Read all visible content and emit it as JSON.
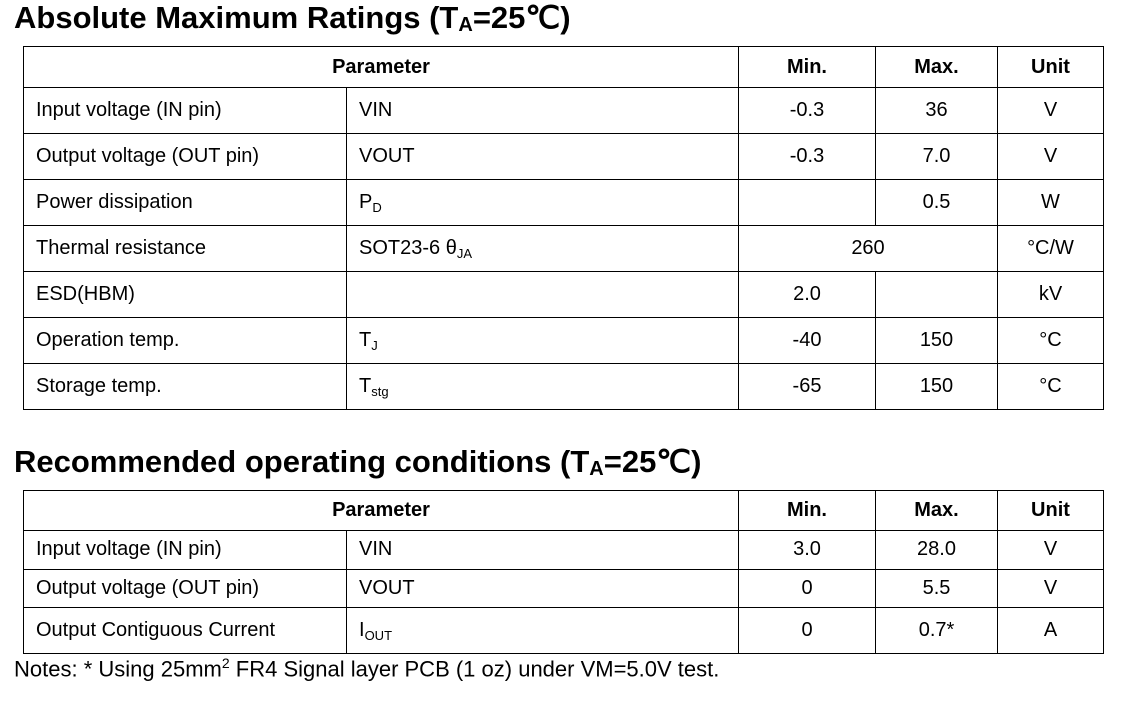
{
  "sections": [
    {
      "title": {
        "text": "Absolute Maximum Ratings (T",
        "sub": "A",
        "tail": "=25℃)"
      },
      "header": [
        "Parameter",
        "Min.",
        "Max.",
        "Unit"
      ],
      "rows": [
        {
          "param": "Input voltage (IN pin)",
          "symbol": {
            "text": "VIN"
          },
          "min": "-0.3",
          "max": "36",
          "unit": "V"
        },
        {
          "param": "Output voltage (OUT pin)",
          "symbol": {
            "text": "VOUT"
          },
          "min": "-0.3",
          "max": "7.0",
          "unit": "V"
        },
        {
          "param": "Power dissipation",
          "symbol": {
            "text": "P",
            "sub": "D"
          },
          "max": "0.5",
          "unit": "W"
        },
        {
          "param": "Thermal resistance",
          "symbol": {
            "text": "SOT23-6 θ",
            "sub": "JA"
          },
          "value": "260",
          "unit": "°C/W"
        },
        {
          "param": "ESD(HBM)",
          "min": "2.0",
          "unit": "kV"
        },
        {
          "param": "Operation temp.",
          "symbol": {
            "text": "T",
            "sub": "J"
          },
          "min": "-40",
          "max": "150",
          "unit": "°C"
        },
        {
          "param": "Storage temp.",
          "symbol": {
            "text": "T",
            "sub": "stg"
          },
          "min": "-65",
          "max": "150",
          "unit": "°C"
        }
      ]
    },
    {
      "title": {
        "text": "Recommended operating conditions (T",
        "sub": "A",
        "tail": "=25℃)"
      },
      "header": [
        "Parameter",
        "Min.",
        "Max.",
        "Unit"
      ],
      "rows": [
        {
          "param": "Input voltage (IN pin)",
          "symbol": {
            "text": "VIN"
          },
          "min": "3.0",
          "max": "28.0",
          "unit": "V"
        },
        {
          "param": "Output voltage (OUT pin)",
          "symbol": {
            "text": "VOUT"
          },
          "min": "0",
          "max": "5.5",
          "unit": "V"
        },
        {
          "param": "Output Contiguous Current",
          "symbol": {
            "text": "I",
            "sub": "OUT"
          },
          "min": "0",
          "max": "0.7*",
          "unit": "A"
        }
      ]
    }
  ],
  "notes": {
    "text": "Notes: * Using 25mm",
    "sup": "2",
    "tail": " FR4 Signal layer PCB (1 oz) under VM=5.0V test."
  }
}
